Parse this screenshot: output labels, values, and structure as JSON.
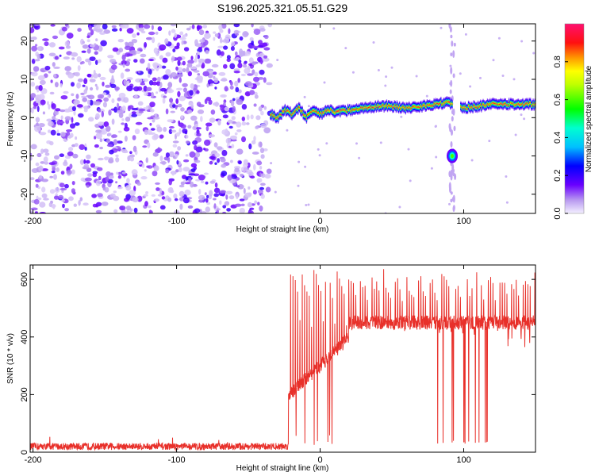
{
  "chart_data": [
    {
      "type": "heatmap",
      "title": "S196.2025.321.05.51.G29",
      "xlabel": "Height of straight line (km)",
      "ylabel": "Frequency (Hz)",
      "xlim": [
        -202,
        150
      ],
      "ylim": [
        -25,
        24.5
      ],
      "xticks": [
        -200,
        -100,
        0,
        100
      ],
      "yticks": [
        -20,
        -10,
        0,
        10,
        20
      ],
      "colorbar": {
        "label": "Normalized spectral amplitude",
        "range": [
          0.0,
          1.0
        ],
        "ticks": [
          0.0,
          0.2,
          0.4,
          0.6,
          0.8
        ],
        "tick_labels": [
          "0.0",
          "0.2",
          "0.4",
          "0.6",
          "0.8"
        ]
      },
      "noise_region": {
        "x_start": -202,
        "x_end": -35,
        "description_level": "low amplitude scattered noise"
      },
      "ridge": {
        "x": [
          -35,
          -30,
          -25,
          -20,
          -15,
          -10,
          -5,
          0,
          5,
          10,
          20,
          30,
          40,
          50,
          60,
          70,
          80,
          88,
          98,
          110,
          120,
          130,
          150
        ],
        "y": [
          1.0,
          0.0,
          2.0,
          1.0,
          2.5,
          0.0,
          2.0,
          1.0,
          2.0,
          1.5,
          2.0,
          2.5,
          3.0,
          3.0,
          2.5,
          3.0,
          3.5,
          4.0,
          2.5,
          3.0,
          3.5,
          3.5,
          3.5
        ]
      },
      "ridge_gap": [
        92,
        97
      ],
      "isolated_blob": {
        "x": 92,
        "y": -10
      }
    },
    {
      "type": "line",
      "xlabel": "Height of straight line (km)",
      "ylabel": "SNR (10 * v/v)",
      "xlim": [
        -202,
        150
      ],
      "ylim": [
        0,
        650
      ],
      "xticks": [
        -200,
        -100,
        0,
        100
      ],
      "yticks": [
        0,
        200,
        400,
        600
      ],
      "series_color": "#e8302a",
      "segments": [
        {
          "x_start": -202,
          "x_end": -22,
          "baseline": 20,
          "noise": 12
        },
        {
          "x_start": -22,
          "x_end": 0,
          "baseline_from": 200,
          "baseline_to": 300
        },
        {
          "x_start": 0,
          "x_end": 20,
          "baseline_from": 300,
          "baseline_to": 400
        },
        {
          "x_start": 20,
          "x_end": 150,
          "baseline": 450
        }
      ],
      "spike_peaks": [
        460,
        640,
        620,
        600,
        580
      ],
      "dropout_range": [
        78,
        117
      ],
      "dropout_value": 30
    }
  ]
}
